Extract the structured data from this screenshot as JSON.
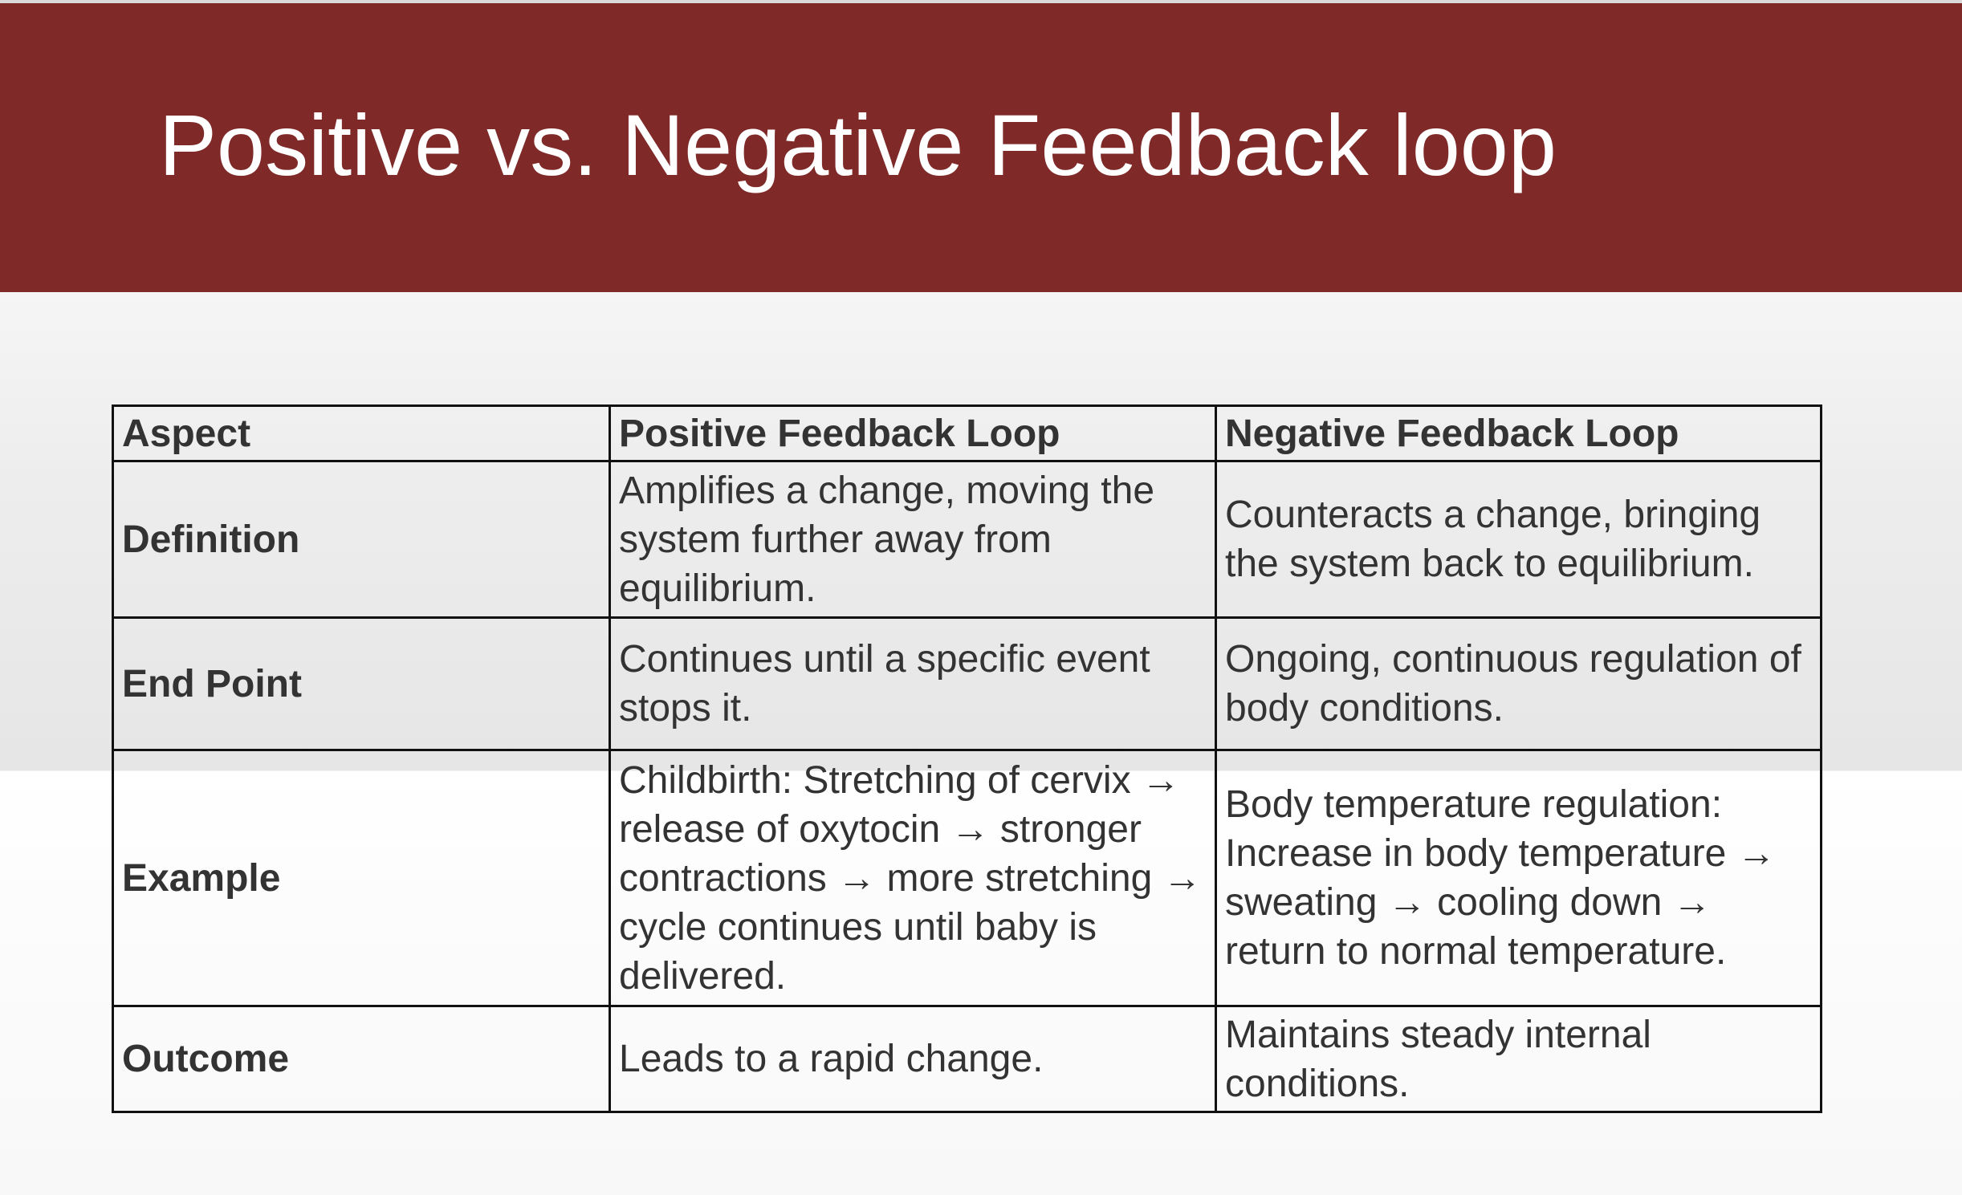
{
  "title": "Positive vs. Negative Feedback loop",
  "table": {
    "headers": [
      "Aspect",
      "Positive Feedback Loop",
      "Negative Feedback Loop"
    ],
    "rows": [
      {
        "aspect": "Definition",
        "positive": "Amplifies a change, moving the system further away from equilibrium.",
        "negative": "Counteracts a change, bringing the system back to equilibrium."
      },
      {
        "aspect": "End Point",
        "positive": "Continues until a specific event stops it.",
        "negative": "Ongoing, continuous regulation of body conditions."
      },
      {
        "aspect": "Example",
        "positive": "Childbirth: Stretching of cervix → release of oxytocin → stronger contractions → more stretching → cycle continues until baby is delivered.",
        "negative": "Body temperature regulation: Increase in body temperature → sweating → cooling down → return to normal temperature."
      },
      {
        "aspect": "Outcome",
        "positive": "Leads to a rapid change.",
        "negative": "Maintains steady internal conditions."
      }
    ]
  },
  "colors": {
    "header_band": "#7f2929",
    "title_text": "#ffffff",
    "table_text": "#333333",
    "table_border": "#111111"
  }
}
